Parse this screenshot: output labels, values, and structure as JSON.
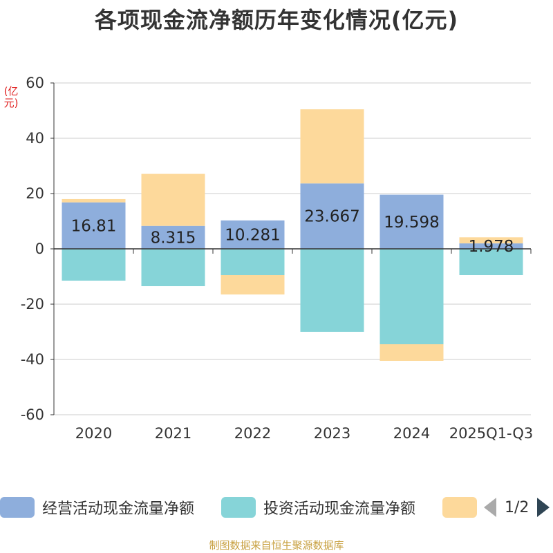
{
  "title": "各项现金流净额历年变化情况(亿元)",
  "unit_label": "(亿元)",
  "source": "制图数据来自恒生聚源数据库",
  "legend": {
    "items": [
      {
        "label": "经营活动现金流量净额",
        "color": "#8eaedc"
      },
      {
        "label": "投资活动现金流量净额",
        "color": "#86d4d8"
      },
      {
        "label": "",
        "color": "#fdd99b"
      }
    ],
    "pager_text": "1/2"
  },
  "chart_data": {
    "type": "bar",
    "stacked": true,
    "title": "各项现金流净额历年变化情况(亿元)",
    "ylabel": "(亿元)",
    "ylim": [
      -60,
      60
    ],
    "yticks": [
      -60,
      -40,
      -20,
      0,
      20,
      40,
      60
    ],
    "categories": [
      "2020",
      "2021",
      "2022",
      "2023",
      "2024",
      "2025Q1-Q3"
    ],
    "series": [
      {
        "name": "经营活动现金流量净额",
        "color": "#8eaedc",
        "values": [
          16.81,
          8.315,
          10.281,
          23.667,
          19.598,
          1.978
        ],
        "labels": [
          "16.81",
          "8.315",
          "10.281",
          "23.667",
          "19.598",
          "1.978"
        ]
      },
      {
        "name": "投资活动现金流量净额",
        "color": "#86d4d8",
        "values": [
          -11.5,
          -13.5,
          -9.5,
          -30.0,
          -34.5,
          -9.5
        ]
      },
      {
        "name": "",
        "color": "#fdd99b",
        "values": [
          1.2,
          18.8,
          -7.0,
          26.8,
          -6.0,
          2.2
        ]
      }
    ]
  }
}
